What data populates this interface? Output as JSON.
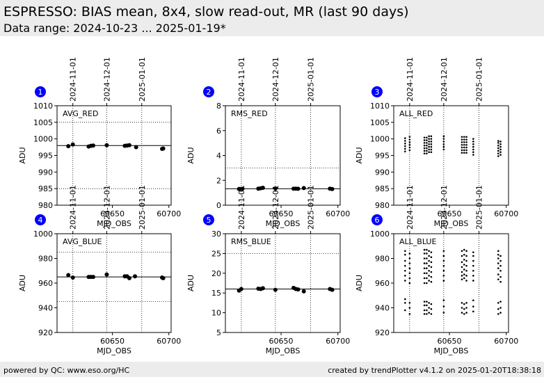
{
  "header": {
    "title": "ESPRESSO: BIAS mean, 8x4, slow read-out, MR (last 90 days)",
    "subtitle": "Data range: 2024-10-23 ... 2025-01-19*"
  },
  "footer": {
    "left": "powered by QC: www.eso.org/HC",
    "right": "created by trendPlotter v4.1.2 on 2025-01-20T18:38:18"
  },
  "colors": {
    "badge": "#0000ff",
    "points": "#000000",
    "frame": "#000000"
  },
  "chart_data": [
    {
      "type": "scatter",
      "badge": "1",
      "label": "AVG_RED",
      "xlabel": "MJD_OBS",
      "ylabel": "ADU",
      "xlim": [
        60601,
        60702
      ],
      "ylim": [
        980,
        1010
      ],
      "xticks": [
        60650,
        60700
      ],
      "yticks": [
        980,
        985,
        990,
        995,
        1000,
        1005,
        1010
      ],
      "refline": 998,
      "hgrid": [
        985,
        1005
      ],
      "date_ticks": [
        {
          "mjd": 60615,
          "label": "2024-11-01"
        },
        {
          "mjd": 60645,
          "label": "2024-12-01"
        },
        {
          "mjd": 60676,
          "label": "2025-01-01"
        }
      ],
      "marker": "large",
      "points": [
        [
          60611,
          997.8
        ],
        [
          60615,
          998.3
        ],
        [
          60629,
          997.7
        ],
        [
          60631,
          997.9
        ],
        [
          60633,
          998.0
        ],
        [
          60645,
          998.1
        ],
        [
          60661,
          997.9
        ],
        [
          60663,
          998.0
        ],
        [
          60665,
          998.1
        ],
        [
          60671,
          997.5
        ],
        [
          60694,
          997.0
        ],
        [
          60695,
          997.1
        ]
      ]
    },
    {
      "type": "scatter",
      "badge": "2",
      "label": "RMS_RED",
      "xlabel": "MJD_OBS",
      "ylabel": "ADU",
      "xlim": [
        60601,
        60702
      ],
      "ylim": [
        0,
        8
      ],
      "xticks": [
        60650,
        60700
      ],
      "yticks": [
        0,
        2,
        4,
        6,
        8
      ],
      "refline": 1.32,
      "hgrid": [
        3
      ],
      "date_ticks": [
        {
          "mjd": 60615,
          "label": "2024-11-01"
        },
        {
          "mjd": 60645,
          "label": "2024-12-01"
        },
        {
          "mjd": 60676,
          "label": "2025-01-01"
        }
      ],
      "marker": "large",
      "points": [
        [
          60613,
          1.3
        ],
        [
          60616,
          1.32
        ],
        [
          60630,
          1.33
        ],
        [
          60632,
          1.36
        ],
        [
          60634,
          1.4
        ],
        [
          60645,
          1.35
        ],
        [
          60661,
          1.33
        ],
        [
          60663,
          1.33
        ],
        [
          60665,
          1.32
        ],
        [
          60670,
          1.38
        ],
        [
          60693,
          1.33
        ],
        [
          60695,
          1.3
        ]
      ]
    },
    {
      "type": "scatter",
      "badge": "3",
      "label": "ALL_RED",
      "xlabel": "MJD_OBS",
      "ylabel": "ADU",
      "xlim": [
        60601,
        60702
      ],
      "ylim": [
        980,
        1010
      ],
      "xticks": [
        60650,
        60700
      ],
      "yticks": [
        980,
        985,
        990,
        995,
        1000,
        1005,
        1010
      ],
      "refline": null,
      "hgrid": [],
      "date_ticks": [
        {
          "mjd": 60615,
          "label": "2024-11-01"
        },
        {
          "mjd": 60645,
          "label": "2024-12-01"
        },
        {
          "mjd": 60676,
          "label": "2025-01-01"
        }
      ],
      "marker": "small",
      "points": [
        [
          60611,
          996.2
        ],
        [
          60611,
          997.0
        ],
        [
          60611,
          997.8
        ],
        [
          60611,
          998.6
        ],
        [
          60611,
          999.4
        ],
        [
          60611,
          1000.2
        ],
        [
          60615,
          996.6
        ],
        [
          60615,
          997.4
        ],
        [
          60615,
          998.2
        ],
        [
          60615,
          999.0
        ],
        [
          60615,
          999.8
        ],
        [
          60615,
          1000.6
        ],
        [
          60628,
          995.6
        ],
        [
          60628,
          996.4
        ],
        [
          60628,
          997.2
        ],
        [
          60628,
          998.0
        ],
        [
          60628,
          998.8
        ],
        [
          60628,
          999.6
        ],
        [
          60628,
          1000.4
        ],
        [
          60630,
          995.6
        ],
        [
          60630,
          996.4
        ],
        [
          60630,
          997.2
        ],
        [
          60630,
          998.0
        ],
        [
          60630,
          998.8
        ],
        [
          60630,
          999.6
        ],
        [
          60630,
          1000.4
        ],
        [
          60632,
          996.0
        ],
        [
          60632,
          996.8
        ],
        [
          60632,
          997.6
        ],
        [
          60632,
          998.4
        ],
        [
          60632,
          999.2
        ],
        [
          60632,
          1000.0
        ],
        [
          60632,
          1000.8
        ],
        [
          60634,
          996.0
        ],
        [
          60634,
          996.8
        ],
        [
          60634,
          997.6
        ],
        [
          60634,
          998.4
        ],
        [
          60634,
          999.2
        ],
        [
          60634,
          1000.0
        ],
        [
          60634,
          1000.8
        ],
        [
          60645,
          996.8
        ],
        [
          60645,
          997.6
        ],
        [
          60645,
          998.4
        ],
        [
          60645,
          999.2
        ],
        [
          60645,
          1000.0
        ],
        [
          60645,
          1000.8
        ],
        [
          60661,
          995.8
        ],
        [
          60661,
          996.6
        ],
        [
          60661,
          997.4
        ],
        [
          60661,
          998.2
        ],
        [
          60661,
          999.0
        ],
        [
          60661,
          999.8
        ],
        [
          60661,
          1000.6
        ],
        [
          60663,
          995.8
        ],
        [
          60663,
          996.6
        ],
        [
          60663,
          997.4
        ],
        [
          60663,
          998.2
        ],
        [
          60663,
          999.0
        ],
        [
          60663,
          999.8
        ],
        [
          60663,
          1000.6
        ],
        [
          60665,
          995.8
        ],
        [
          60665,
          996.6
        ],
        [
          60665,
          997.4
        ],
        [
          60665,
          998.2
        ],
        [
          60665,
          999.0
        ],
        [
          60665,
          999.8
        ],
        [
          60665,
          1000.6
        ],
        [
          60671,
          995.2
        ],
        [
          60671,
          996.0
        ],
        [
          60671,
          996.8
        ],
        [
          60671,
          997.6
        ],
        [
          60671,
          998.4
        ],
        [
          60671,
          999.2
        ],
        [
          60671,
          1000.0
        ],
        [
          60693,
          994.8
        ],
        [
          60693,
          995.6
        ],
        [
          60693,
          996.4
        ],
        [
          60693,
          997.2
        ],
        [
          60693,
          998.0
        ],
        [
          60693,
          998.8
        ],
        [
          60693,
          999.4
        ],
        [
          60695,
          995.2
        ],
        [
          60695,
          996.0
        ],
        [
          60695,
          996.8
        ],
        [
          60695,
          997.6
        ],
        [
          60695,
          998.4
        ],
        [
          60695,
          999.2
        ]
      ]
    },
    {
      "type": "scatter",
      "badge": "4",
      "label": "AVG_BLUE",
      "xlabel": "MJD_OBS",
      "ylabel": "ADU",
      "xlim": [
        60601,
        60702
      ],
      "ylim": [
        920,
        1000
      ],
      "xticks": [
        60650,
        60700
      ],
      "yticks": [
        920,
        940,
        960,
        980,
        1000
      ],
      "refline": 965,
      "hgrid": [
        945,
        985
      ],
      "date_ticks": [
        {
          "mjd": 60615,
          "label": "2024-11-01"
        },
        {
          "mjd": 60645,
          "label": "2024-12-01"
        },
        {
          "mjd": 60676,
          "label": "2025-01-01"
        }
      ],
      "marker": "large",
      "points": [
        [
          60611,
          966.5
        ],
        [
          60615,
          964.5
        ],
        [
          60629,
          965.0
        ],
        [
          60631,
          965.0
        ],
        [
          60633,
          965.0
        ],
        [
          60645,
          967.0
        ],
        [
          60661,
          965.5
        ],
        [
          60663,
          965.5
        ],
        [
          60665,
          964.0
        ],
        [
          60670,
          965.5
        ],
        [
          60694,
          964.5
        ],
        [
          60695,
          964.0
        ]
      ]
    },
    {
      "type": "scatter",
      "badge": "5",
      "label": "RMS_BLUE",
      "xlabel": "MJD_OBS",
      "ylabel": "ADU",
      "xlim": [
        60601,
        60702
      ],
      "ylim": [
        5,
        30
      ],
      "xticks": [
        60650,
        60700
      ],
      "yticks": [
        5,
        10,
        15,
        20,
        25,
        30
      ],
      "refline": 16,
      "hgrid": [
        25
      ],
      "date_ticks": [
        {
          "mjd": 60615,
          "label": "2024-11-01"
        },
        {
          "mjd": 60645,
          "label": "2024-12-01"
        },
        {
          "mjd": 60676,
          "label": "2025-01-01"
        }
      ],
      "marker": "large",
      "points": [
        [
          60613,
          15.6
        ],
        [
          60615,
          16.0
        ],
        [
          60630,
          16.1
        ],
        [
          60632,
          16.0
        ],
        [
          60634,
          16.2
        ],
        [
          60645,
          15.8
        ],
        [
          60661,
          16.3
        ],
        [
          60663,
          16.0
        ],
        [
          60665,
          15.9
        ],
        [
          60670,
          15.4
        ],
        [
          60693,
          16.0
        ],
        [
          60695,
          15.8
        ]
      ]
    },
    {
      "type": "scatter",
      "badge": "6",
      "label": "ALL_BLUE",
      "xlabel": "MJD_OBS",
      "ylabel": "ADU",
      "xlim": [
        60601,
        60702
      ],
      "ylim": [
        920,
        1000
      ],
      "xticks": [
        60650,
        60700
      ],
      "yticks": [
        920,
        940,
        960,
        980,
        1000
      ],
      "refline": null,
      "hgrid": [],
      "date_ticks": [
        {
          "mjd": 60615,
          "label": "2024-11-01"
        },
        {
          "mjd": 60645,
          "label": "2024-12-01"
        },
        {
          "mjd": 60676,
          "label": "2025-01-01"
        }
      ],
      "marker": "small",
      "points": [
        [
          60611,
          938
        ],
        [
          60611,
          944
        ],
        [
          60611,
          947
        ],
        [
          60611,
          962
        ],
        [
          60611,
          966
        ],
        [
          60611,
          970
        ],
        [
          60611,
          974
        ],
        [
          60611,
          978
        ],
        [
          60611,
          983
        ],
        [
          60611,
          986
        ],
        [
          60615,
          935
        ],
        [
          60615,
          940
        ],
        [
          60615,
          944
        ],
        [
          60615,
          960
        ],
        [
          60615,
          964
        ],
        [
          60615,
          968
        ],
        [
          60615,
          972
        ],
        [
          60615,
          976
        ],
        [
          60615,
          980
        ],
        [
          60615,
          984
        ],
        [
          60628,
          935
        ],
        [
          60628,
          938
        ],
        [
          60628,
          942
        ],
        [
          60628,
          945
        ],
        [
          60628,
          960
        ],
        [
          60628,
          964
        ],
        [
          60628,
          968
        ],
        [
          60628,
          972
        ],
        [
          60628,
          976
        ],
        [
          60628,
          980
        ],
        [
          60628,
          984
        ],
        [
          60628,
          987
        ],
        [
          60630,
          935
        ],
        [
          60630,
          938
        ],
        [
          60630,
          942
        ],
        [
          60630,
          945
        ],
        [
          60630,
          960
        ],
        [
          60630,
          964
        ],
        [
          60630,
          968
        ],
        [
          60630,
          972
        ],
        [
          60630,
          976
        ],
        [
          60630,
          980
        ],
        [
          60630,
          984
        ],
        [
          60630,
          987
        ],
        [
          60632,
          936
        ],
        [
          60632,
          940
        ],
        [
          60632,
          944
        ],
        [
          60632,
          962
        ],
        [
          60632,
          966
        ],
        [
          60632,
          970
        ],
        [
          60632,
          974
        ],
        [
          60632,
          978
        ],
        [
          60632,
          982
        ],
        [
          60632,
          986
        ],
        [
          60634,
          935
        ],
        [
          60634,
          939
        ],
        [
          60634,
          943
        ],
        [
          60634,
          961
        ],
        [
          60634,
          965
        ],
        [
          60634,
          969
        ],
        [
          60634,
          973
        ],
        [
          60634,
          977
        ],
        [
          60634,
          981
        ],
        [
          60634,
          985
        ],
        [
          60645,
          936
        ],
        [
          60645,
          941
        ],
        [
          60645,
          946
        ],
        [
          60645,
          962
        ],
        [
          60645,
          966
        ],
        [
          60645,
          970
        ],
        [
          60645,
          974
        ],
        [
          60645,
          978
        ],
        [
          60645,
          982
        ],
        [
          60645,
          986
        ],
        [
          60661,
          936
        ],
        [
          60661,
          940
        ],
        [
          60661,
          944
        ],
        [
          60661,
          963
        ],
        [
          60661,
          966
        ],
        [
          60661,
          969
        ],
        [
          60661,
          973
        ],
        [
          60661,
          977
        ],
        [
          60661,
          982
        ],
        [
          60661,
          986
        ],
        [
          60663,
          935
        ],
        [
          60663,
          939
        ],
        [
          60663,
          943
        ],
        [
          60663,
          964
        ],
        [
          60663,
          967
        ],
        [
          60663,
          971
        ],
        [
          60663,
          975
        ],
        [
          60663,
          979
        ],
        [
          60663,
          983
        ],
        [
          60663,
          987
        ],
        [
          60665,
          936
        ],
        [
          60665,
          940
        ],
        [
          60665,
          944
        ],
        [
          60665,
          962
        ],
        [
          60665,
          966
        ],
        [
          60665,
          970
        ],
        [
          60665,
          974
        ],
        [
          60665,
          978
        ],
        [
          60665,
          982
        ],
        [
          60665,
          986
        ],
        [
          60671,
          937
        ],
        [
          60671,
          941
        ],
        [
          60671,
          946
        ],
        [
          60671,
          962
        ],
        [
          60671,
          966
        ],
        [
          60671,
          970
        ],
        [
          60671,
          974
        ],
        [
          60671,
          978
        ],
        [
          60671,
          982
        ],
        [
          60671,
          985
        ],
        [
          60693,
          935
        ],
        [
          60693,
          939
        ],
        [
          60693,
          944
        ],
        [
          60693,
          963
        ],
        [
          60693,
          967
        ],
        [
          60693,
          972
        ],
        [
          60693,
          976
        ],
        [
          60693,
          980
        ],
        [
          60693,
          983
        ],
        [
          60693,
          986
        ],
        [
          60695,
          936
        ],
        [
          60695,
          940
        ],
        [
          60695,
          945
        ],
        [
          60695,
          961
        ],
        [
          60695,
          965
        ],
        [
          60695,
          970
        ],
        [
          60695,
          974
        ],
        [
          60695,
          978
        ],
        [
          60695,
          982
        ]
      ]
    }
  ]
}
